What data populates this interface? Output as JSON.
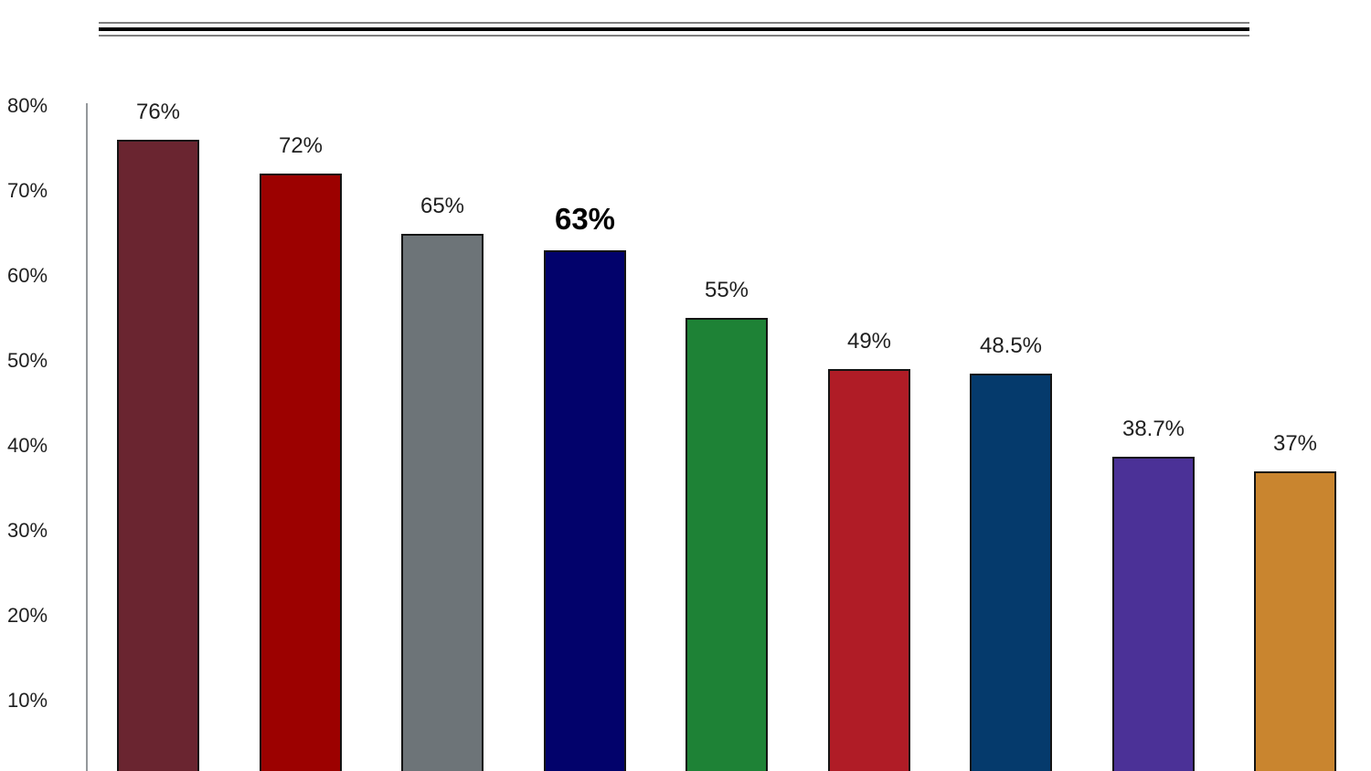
{
  "divider": {
    "outer_line_color": "#7f7f7f",
    "inner_line_color": "#000000"
  },
  "chart_data": {
    "type": "bar",
    "title": "",
    "xlabel": "",
    "ylabel": "",
    "values": [
      76,
      72,
      65,
      63,
      55,
      49,
      48.5,
      38.7,
      37
    ],
    "value_labels": [
      "76%",
      "72%",
      "65%",
      "63%",
      "55%",
      "49%",
      "48.5%",
      "38.7%",
      "37%"
    ],
    "emphasized_index": 3,
    "bar_colors": [
      "#6A2530",
      "#9C0100",
      "#6D7478",
      "#02026B",
      "#1E8236",
      "#B01C26",
      "#053A6C",
      "#4B3197",
      "#C9852F"
    ],
    "bar_border_color": "#141414",
    "ytick_labels": [
      "80%",
      "70%",
      "60%",
      "50%",
      "40%",
      "30%",
      "20%",
      "10%"
    ],
    "ytick_values": [
      80,
      70,
      60,
      50,
      40,
      30,
      20,
      10
    ],
    "ylim": [
      0,
      80
    ],
    "grid": false,
    "legend": null,
    "axis_line_color": "#94989b",
    "label_text_color": "#1f1f1f"
  }
}
